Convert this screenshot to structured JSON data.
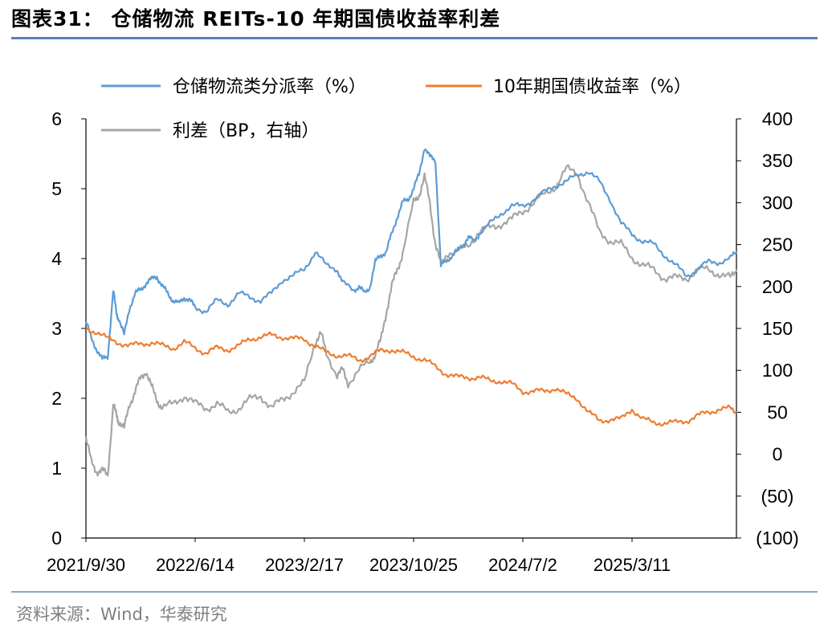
{
  "figure": {
    "title": "图表31： 仓储物流 REITs-10 年期国债收益率利差",
    "source": "资料来源：Wind，华泰研究"
  },
  "chart_data": {
    "type": "line",
    "title": "仓储物流 REITs-10 年期国债收益率利差",
    "x_tick_labels": [
      "2021/9/30",
      "2022/6/14",
      "2023/2/17",
      "2023/10/25",
      "2024/7/2",
      "2025/3/11"
    ],
    "x_tick_index": [
      0,
      1,
      2,
      3,
      4,
      5
    ],
    "x_range": [
      0,
      5.96
    ],
    "left_axis": {
      "ylim": [
        0,
        6
      ],
      "ticks": [
        0,
        1,
        2,
        3,
        4,
        5,
        6
      ],
      "tick_labels": [
        "0",
        "1",
        "2",
        "3",
        "4",
        "5",
        "6"
      ]
    },
    "right_axis": {
      "ylim": [
        -100,
        400
      ],
      "ticks": [
        -100,
        -50,
        0,
        50,
        100,
        150,
        200,
        250,
        300,
        350,
        400
      ],
      "tick_labels": [
        "(100)",
        "(50)",
        "0",
        "50",
        "100",
        "150",
        "200",
        "250",
        "300",
        "350",
        "400"
      ]
    },
    "legend": [
      "仓储物流类分派率（%）",
      "10年期国债收益率（%）",
      "利差（BP，右轴）"
    ],
    "series": [
      {
        "name": "仓储物流类分派率（%）",
        "axis": "left",
        "color": "#5b9bd5",
        "x": [
          0,
          0.05,
          0.1,
          0.15,
          0.2,
          0.25,
          0.28,
          0.3,
          0.35,
          0.4,
          0.45,
          0.5,
          0.55,
          0.6,
          0.65,
          0.7,
          0.75,
          0.8,
          0.85,
          0.9,
          0.95,
          1.0,
          1.1,
          1.2,
          1.3,
          1.4,
          1.5,
          1.6,
          1.7,
          1.8,
          1.9,
          2.0,
          2.1,
          2.2,
          2.3,
          2.35,
          2.45,
          2.5,
          2.55,
          2.6,
          2.65,
          2.7,
          2.75,
          2.8,
          2.85,
          2.9,
          2.95,
          3.0,
          3.05,
          3.1,
          3.15,
          3.2,
          3.25,
          3.3,
          3.35,
          3.4,
          3.45,
          3.5,
          3.55,
          3.6,
          3.7,
          3.8,
          3.9,
          4.0,
          4.1,
          4.2,
          4.3,
          4.4,
          4.5,
          4.6,
          4.7,
          4.8,
          4.9,
          5.0,
          5.1,
          5.2,
          5.3,
          5.4,
          5.5,
          5.6,
          5.7,
          5.8,
          5.9,
          5.96
        ],
        "y": [
          3.1,
          2.85,
          2.7,
          2.55,
          2.6,
          3.55,
          3.2,
          3.15,
          2.9,
          3.3,
          3.5,
          3.55,
          3.65,
          3.7,
          3.75,
          3.6,
          3.5,
          3.4,
          3.35,
          3.45,
          3.4,
          3.3,
          3.25,
          3.4,
          3.35,
          3.5,
          3.45,
          3.4,
          3.5,
          3.7,
          3.75,
          3.85,
          4.1,
          3.9,
          3.85,
          3.65,
          3.55,
          3.6,
          3.5,
          3.6,
          3.95,
          4.05,
          4.1,
          4.35,
          4.6,
          4.8,
          4.85,
          5.0,
          5.2,
          5.6,
          5.45,
          5.4,
          3.9,
          3.95,
          4.05,
          4.1,
          4.2,
          4.3,
          4.25,
          4.35,
          4.5,
          4.65,
          4.75,
          4.75,
          4.85,
          4.95,
          5.05,
          5.1,
          5.2,
          5.25,
          5.1,
          4.85,
          4.5,
          4.35,
          4.25,
          4.2,
          4.05,
          3.9,
          3.75,
          3.85,
          3.95,
          3.95,
          4.0,
          4.1
        ]
      },
      {
        "name": "10年期国债收益率（%）",
        "axis": "left",
        "color": "#ed7d31",
        "x": [
          0,
          0.1,
          0.2,
          0.3,
          0.4,
          0.5,
          0.6,
          0.7,
          0.8,
          0.9,
          1.0,
          1.1,
          1.2,
          1.3,
          1.4,
          1.5,
          1.6,
          1.7,
          1.8,
          1.9,
          2.0,
          2.1,
          2.2,
          2.3,
          2.4,
          2.5,
          2.6,
          2.7,
          2.8,
          2.9,
          3.0,
          3.1,
          3.2,
          3.3,
          3.4,
          3.5,
          3.6,
          3.7,
          3.8,
          3.9,
          4.0,
          4.1,
          4.2,
          4.3,
          4.4,
          4.5,
          4.6,
          4.7,
          4.8,
          4.9,
          5.0,
          5.1,
          5.2,
          5.3,
          5.4,
          5.5,
          5.6,
          5.7,
          5.8,
          5.9,
          5.96
        ],
        "y": [
          3.0,
          2.95,
          2.85,
          2.8,
          2.75,
          2.78,
          2.8,
          2.75,
          2.72,
          2.8,
          2.72,
          2.65,
          2.72,
          2.7,
          2.75,
          2.85,
          2.88,
          2.9,
          2.88,
          2.85,
          2.85,
          2.75,
          2.65,
          2.62,
          2.6,
          2.55,
          2.6,
          2.68,
          2.7,
          2.65,
          2.6,
          2.55,
          2.45,
          2.35,
          2.3,
          2.3,
          2.3,
          2.25,
          2.25,
          2.2,
          2.1,
          2.1,
          2.1,
          2.15,
          2.05,
          2.0,
          1.8,
          1.68,
          1.7,
          1.7,
          1.85,
          1.7,
          1.65,
          1.65,
          1.65,
          1.68,
          1.75,
          1.8,
          1.85,
          1.85,
          1.8
        ]
      },
      {
        "name": "利差（BP，右轴）",
        "axis": "right",
        "color": "#a5a5a5",
        "x": [
          0,
          0.05,
          0.1,
          0.15,
          0.2,
          0.25,
          0.28,
          0.3,
          0.35,
          0.4,
          0.45,
          0.5,
          0.55,
          0.6,
          0.65,
          0.7,
          0.8,
          0.9,
          1.0,
          1.1,
          1.2,
          1.3,
          1.4,
          1.5,
          1.6,
          1.7,
          1.8,
          1.9,
          2.0,
          2.1,
          2.15,
          2.2,
          2.3,
          2.35,
          2.4,
          2.5,
          2.6,
          2.65,
          2.7,
          2.75,
          2.8,
          2.85,
          2.9,
          3.0,
          3.05,
          3.1,
          3.15,
          3.2,
          3.25,
          3.3,
          3.4,
          3.5,
          3.6,
          3.7,
          3.8,
          3.9,
          4.0,
          4.1,
          4.2,
          4.3,
          4.4,
          4.5,
          4.6,
          4.7,
          4.8,
          4.9,
          5.0,
          5.1,
          5.2,
          5.3,
          5.4,
          5.5,
          5.6,
          5.7,
          5.8,
          5.9,
          5.96
        ],
        "y": [
          20,
          -10,
          -20,
          -20,
          -25,
          60,
          45,
          40,
          30,
          60,
          75,
          90,
          100,
          80,
          65,
          55,
          60,
          70,
          60,
          55,
          60,
          50,
          55,
          65,
          70,
          55,
          65,
          75,
          85,
          135,
          145,
          120,
          95,
          100,
          85,
          100,
          110,
          120,
          135,
          170,
          200,
          220,
          240,
          300,
          310,
          330,
          300,
          250,
          225,
          240,
          240,
          250,
          265,
          270,
          275,
          280,
          290,
          300,
          310,
          320,
          340,
          335,
          300,
          265,
          255,
          250,
          235,
          225,
          220,
          210,
          210,
          210,
          220,
          220,
          215,
          210,
          220
        ]
      }
    ]
  }
}
